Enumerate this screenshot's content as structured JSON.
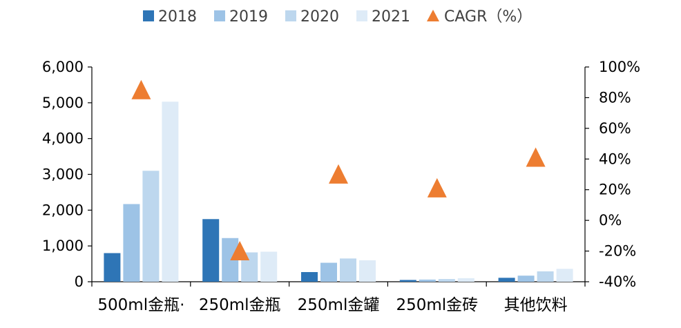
{
  "chart_data": {
    "type": "bar",
    "categories": [
      "500ml金瓶·",
      "250ml金瓶",
      "250ml金罐",
      "250ml金砖",
      "其他饮料"
    ],
    "series": [
      {
        "name": "2018",
        "values": [
          800,
          1750,
          270,
          50,
          110
        ],
        "color": "#2E75B6"
      },
      {
        "name": "2019",
        "values": [
          2170,
          1220,
          530,
          60,
          170
        ],
        "color": "#9DC3E6"
      },
      {
        "name": "2020",
        "values": [
          3100,
          820,
          650,
          75,
          290
        ],
        "color": "#BDD7EE"
      },
      {
        "name": "2021",
        "values": [
          5030,
          840,
          600,
          100,
          360
        ],
        "color": "#DEEBF7"
      }
    ],
    "secondary_series": {
      "name": "CAGR（%）",
      "type": "scatter",
      "marker": "triangle",
      "color": "#ED7D31",
      "values": [
        84,
        -21,
        29,
        20,
        40
      ]
    },
    "ylim": [
      0,
      6000
    ],
    "y_ticks": [
      "0",
      "1,000",
      "2,000",
      "3,000",
      "4,000",
      "5,000",
      "6,000"
    ],
    "y2lim": [
      -40,
      100
    ],
    "y2_ticks": [
      "-40%",
      "-20%",
      "0%",
      "20%",
      "40%",
      "60%",
      "80%",
      "100%"
    ],
    "legend_position": "top",
    "grid": false
  }
}
